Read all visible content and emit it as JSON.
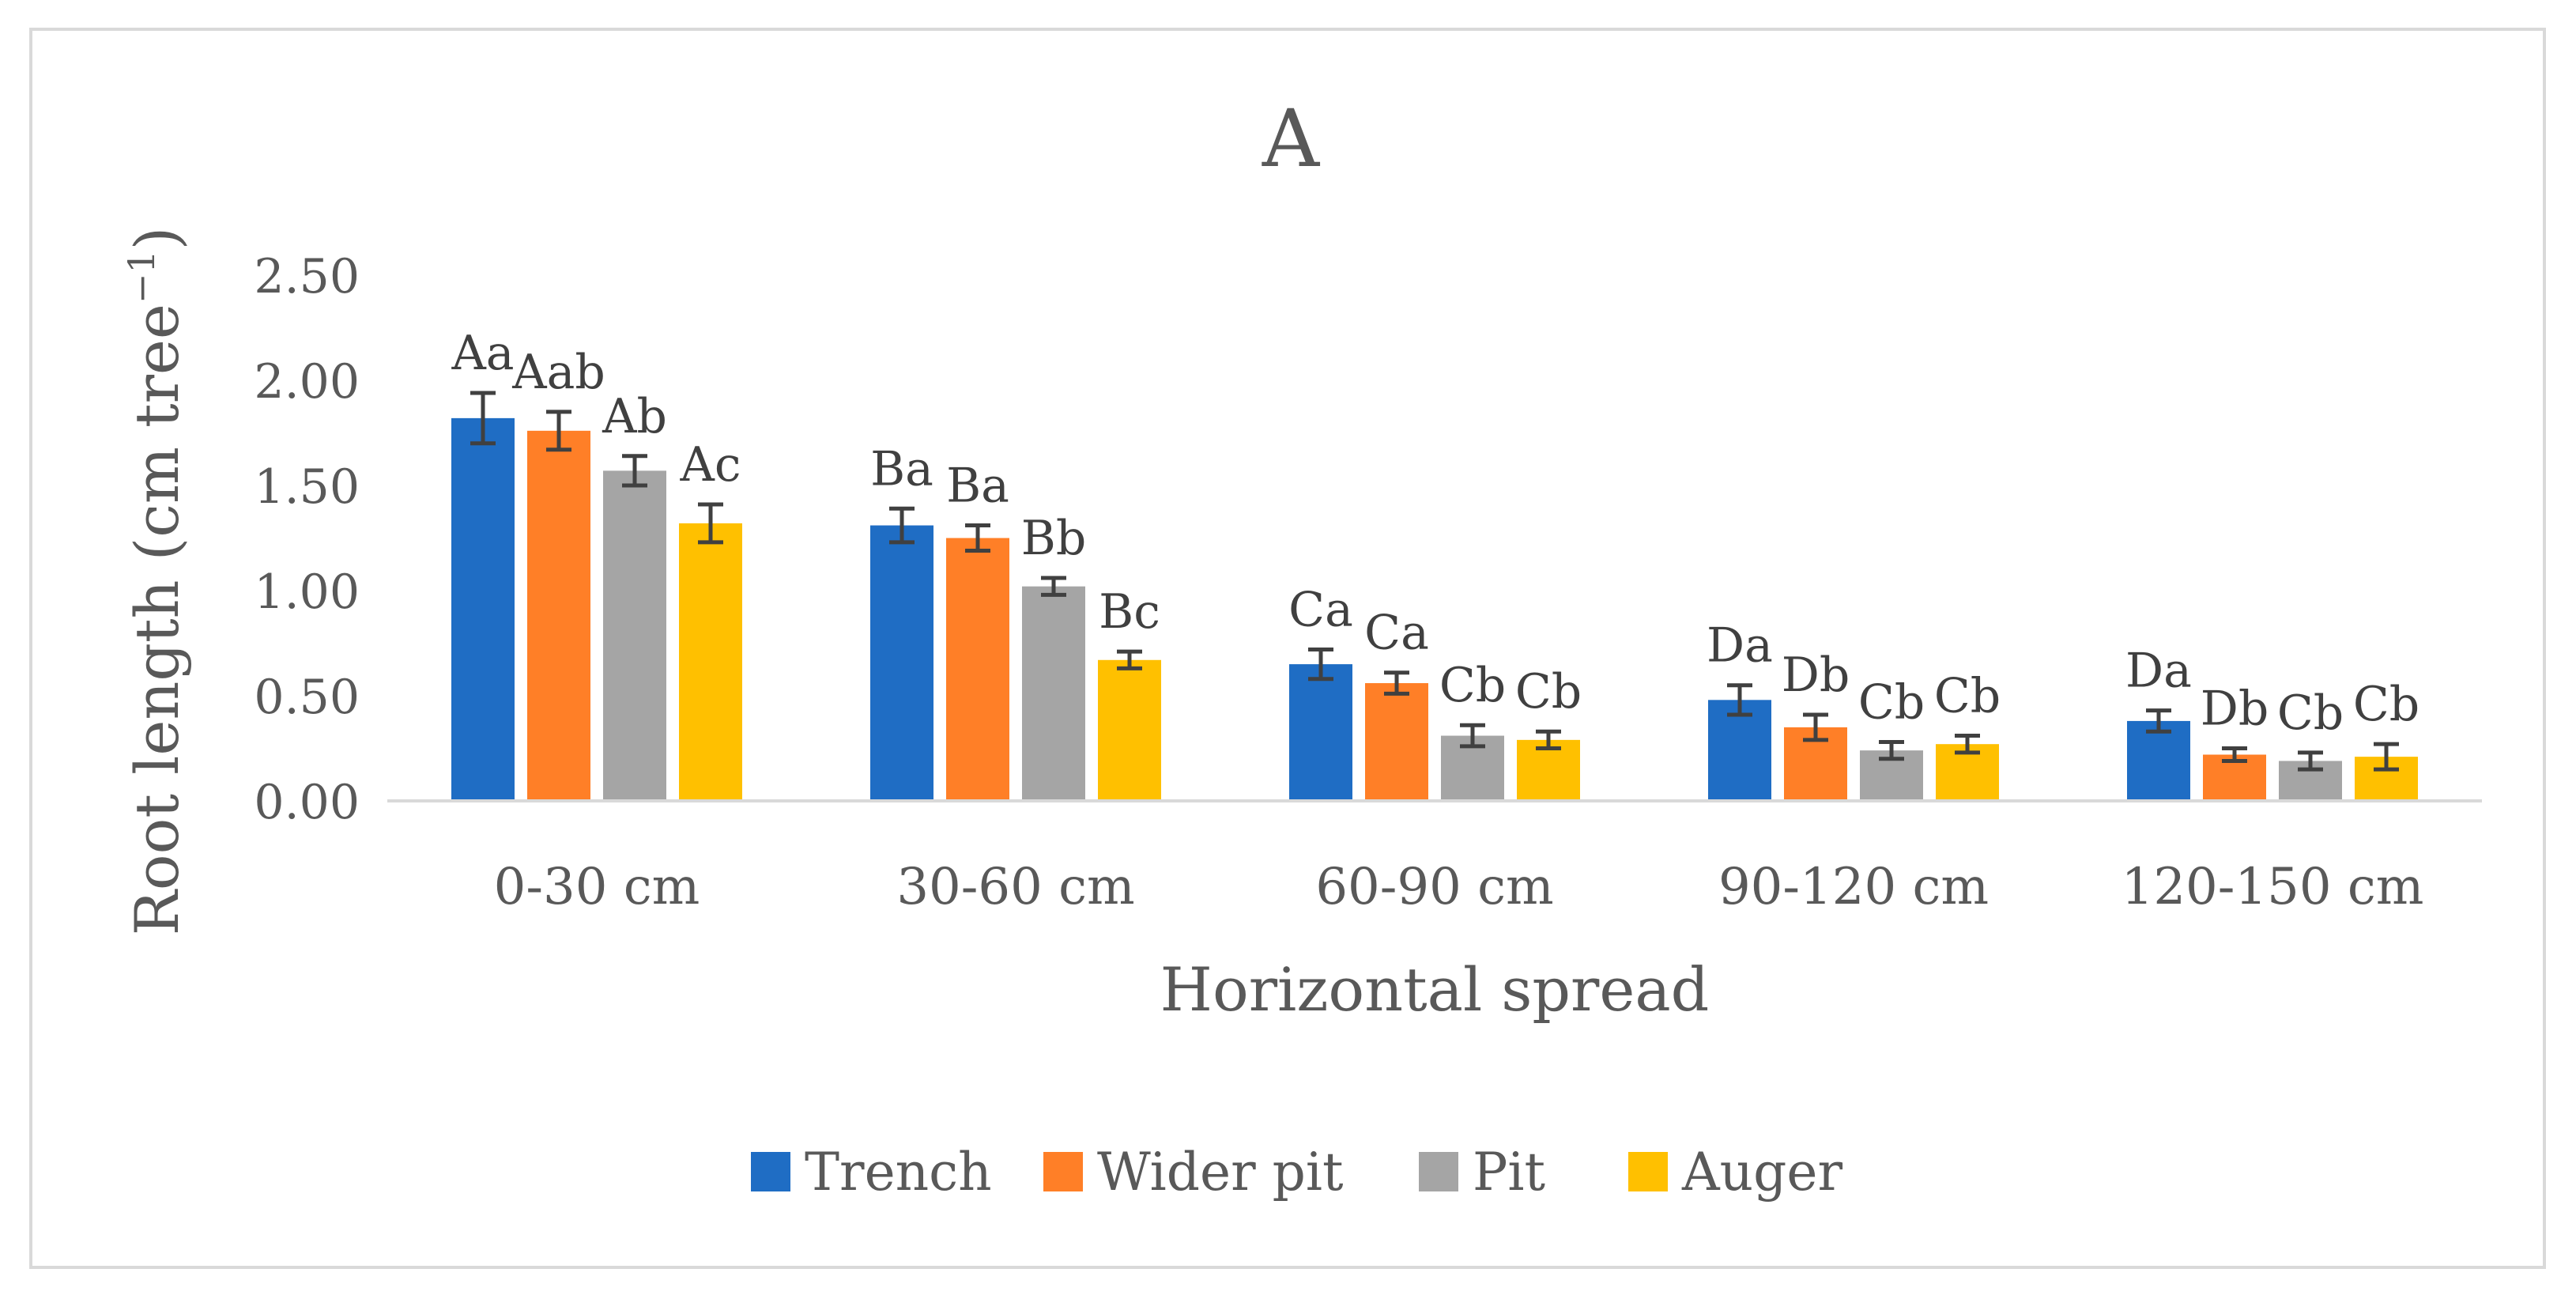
{
  "chart_data": {
    "type": "bar",
    "title": "A",
    "xlabel": "Horizontal spread",
    "ylabel": "Root length (cm tree",
    "ylabel_sup": "−1",
    "ylabel_suffix": ")",
    "categories": [
      "0-30 cm",
      "30-60 cm",
      "60-90 cm",
      "90-120 cm",
      "120-150 cm"
    ],
    "ylim": [
      0,
      2.5
    ],
    "yticks": [
      "0.00",
      "0.50",
      "1.00",
      "1.50",
      "2.00",
      "2.50"
    ],
    "grid": false,
    "legend_position": "bottom",
    "series": [
      {
        "name": "Trench",
        "color": "#1F6DC4",
        "values": [
          1.82,
          1.31,
          0.65,
          0.48,
          0.38
        ],
        "errors": [
          0.12,
          0.08,
          0.07,
          0.07,
          0.05
        ],
        "labels": [
          "Aa",
          "Ba",
          "Ca",
          "Da",
          "Da"
        ]
      },
      {
        "name": "Wider pit",
        "color": "#FF7F27",
        "values": [
          1.76,
          1.25,
          0.56,
          0.35,
          0.22
        ],
        "errors": [
          0.09,
          0.06,
          0.05,
          0.06,
          0.03
        ],
        "labels": [
          "Aab",
          "Ba",
          "Ca",
          "Db",
          "Db"
        ]
      },
      {
        "name": "Pit",
        "color": "#A5A5A5",
        "values": [
          1.57,
          1.02,
          0.31,
          0.24,
          0.19
        ],
        "errors": [
          0.07,
          0.04,
          0.05,
          0.04,
          0.04
        ],
        "labels": [
          "Ab",
          "Bb",
          "Cb",
          "Cb",
          "Cb"
        ]
      },
      {
        "name": "Auger",
        "color": "#FFC000",
        "values": [
          1.32,
          0.67,
          0.29,
          0.27,
          0.21
        ],
        "errors": [
          0.09,
          0.04,
          0.04,
          0.04,
          0.06
        ],
        "labels": [
          "Ac",
          "Bc",
          "Cb",
          "Cb",
          "Cb"
        ]
      }
    ]
  }
}
